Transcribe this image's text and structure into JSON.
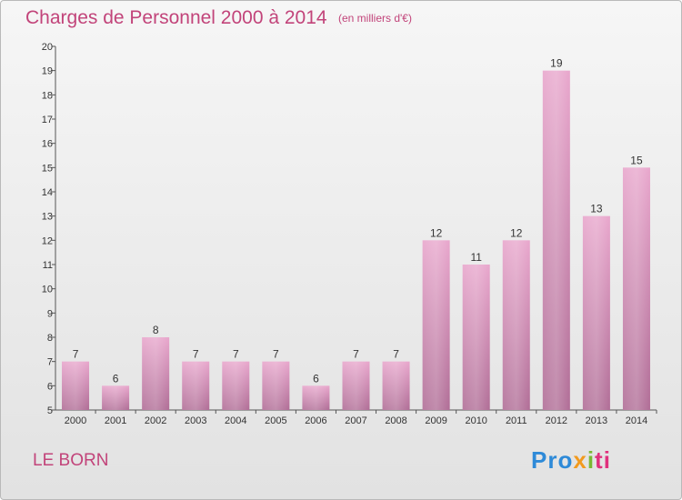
{
  "header": {
    "title": "Charges de Personnel 2000 à 2014",
    "subtitle": "(en milliers d'€)"
  },
  "footer": {
    "commune": "LE BORN",
    "logo_parts": [
      "Pro",
      "x",
      "i",
      "ti"
    ]
  },
  "colors": {
    "title": "#c2447a",
    "bar_top": "#e8a6cc",
    "bar_bottom": "#b06d96",
    "axis": "#555555"
  },
  "chart_data": {
    "type": "bar",
    "title": "Charges de Personnel 2000 à 2014",
    "subtitle": "(en milliers d'€)",
    "xlabel": "",
    "ylabel": "",
    "categories": [
      "2000",
      "2001",
      "2002",
      "2003",
      "2004",
      "2005",
      "2006",
      "2007",
      "2008",
      "2009",
      "2010",
      "2011",
      "2012",
      "2013",
      "2014"
    ],
    "values": [
      7,
      6,
      8,
      7,
      7,
      7,
      6,
      7,
      7,
      12,
      11,
      12,
      19,
      13,
      15
    ],
    "ylim": [
      5,
      20
    ],
    "yticks": [
      5,
      6,
      7,
      8,
      9,
      10,
      11,
      12,
      13,
      14,
      15,
      16,
      17,
      18,
      19,
      20
    ],
    "grid": false,
    "data_labels": true
  }
}
